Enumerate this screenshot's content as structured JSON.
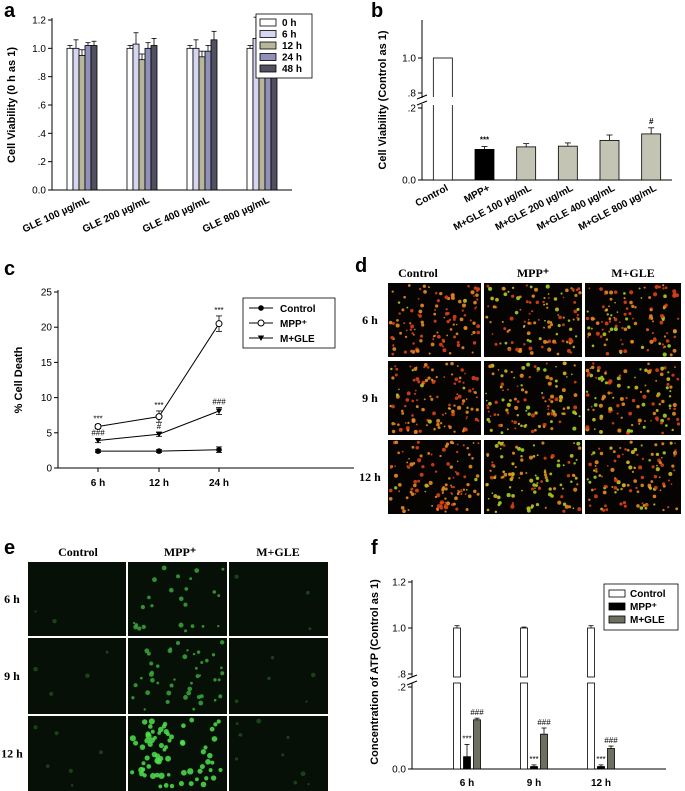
{
  "panel_letters": [
    "a",
    "b",
    "c",
    "d",
    "e",
    "f"
  ],
  "chart_data": [
    {
      "id": "a",
      "type": "bar",
      "ylabel": "Cell Viability (0 h as 1)",
      "ylim": [
        0,
        1.2
      ],
      "yticks": [
        "0.0",
        ".2",
        ".4",
        ".6",
        ".8",
        "1.0",
        "1.2"
      ],
      "categories": [
        "GLE 100 µg/mL",
        "GLE 200 µg/mL",
        "GLE 400 µg/mL",
        "GLE 800 µg/mL"
      ],
      "legend_position": "top-right",
      "series": [
        {
          "name": "0 h",
          "color": "#ffffff",
          "values": [
            1.0,
            1.0,
            1.0,
            1.0
          ],
          "errors": [
            0.02,
            0.02,
            0.02,
            0.02
          ]
        },
        {
          "name": "6 h",
          "color": "#d6d6f2",
          "values": [
            1.0,
            1.03,
            1.0,
            1.07
          ],
          "errors": [
            0.06,
            0.08,
            0.06,
            0.15
          ]
        },
        {
          "name": "12 h",
          "color": "#b8b69a",
          "values": [
            0.95,
            0.92,
            0.94,
            0.9
          ],
          "errors": [
            0.04,
            0.04,
            0.04,
            0.04
          ]
        },
        {
          "name": "24 h",
          "color": "#9090b8",
          "values": [
            1.02,
            1.0,
            0.98,
            1.03
          ],
          "errors": [
            0.02,
            0.04,
            0.04,
            0.03
          ]
        },
        {
          "name": "48 h",
          "color": "#505060",
          "values": [
            1.02,
            1.02,
            1.06,
            1.12
          ],
          "errors": [
            0.03,
            0.05,
            0.06,
            0.06
          ]
        }
      ]
    },
    {
      "id": "b",
      "type": "bar",
      "ylabel": "Cell Viability (Control as 1)",
      "yticks_upper": [
        ".8",
        "1.0"
      ],
      "yticks_lower": [
        "0.0",
        ".2"
      ],
      "categories": [
        "Control",
        "MPP+",
        "M+GLE 100 µg/mL",
        "M+GLE 200 µg/mL",
        "M+GLE 400 µg/mL",
        "M+GLE 800 µg/mL"
      ],
      "values": [
        1.0,
        0.085,
        0.092,
        0.094,
        0.11,
        0.128
      ],
      "errors": [
        0,
        0.008,
        0.009,
        0.009,
        0.015,
        0.017
      ],
      "colors": [
        "#ffffff",
        "#000000",
        "#c4c4b4",
        "#c4c4b4",
        "#c4c4b4",
        "#c4c4b4"
      ],
      "annotations": [
        "",
        "***",
        "",
        "",
        "",
        "#"
      ]
    },
    {
      "id": "c",
      "type": "line",
      "ylabel": "% Cell Death",
      "ylim": [
        0,
        25
      ],
      "yticks": [
        "0",
        "5",
        "10",
        "15",
        "20",
        "25"
      ],
      "categories": [
        "6 h",
        "12 h",
        "24 h"
      ],
      "legend_position": "top-right",
      "series": [
        {
          "name": "Control",
          "marker": "filled-circle",
          "values": [
            2.4,
            2.4,
            2.6
          ],
          "errors": [
            0.2,
            0.2,
            0.4
          ],
          "labels": [
            "",
            "",
            ""
          ]
        },
        {
          "name": "MPP⁺",
          "marker": "open-circle",
          "values": [
            5.9,
            7.3,
            20.5
          ],
          "errors": [
            0.3,
            0.8,
            1.1
          ],
          "labels": [
            "***",
            "***",
            "***"
          ]
        },
        {
          "name": "M+GLE",
          "marker": "filled-triangle",
          "values": [
            3.9,
            4.8,
            8.1
          ],
          "errors": [
            0.3,
            0.3,
            0.5
          ],
          "labels": [
            "###",
            "#",
            "###"
          ]
        }
      ]
    },
    {
      "id": "f",
      "type": "bar",
      "ylabel": "Concentration of ATP (Control as 1)",
      "yticks_upper": [
        ".8",
        "1.0",
        "1.2"
      ],
      "yticks_lower": [
        "0.0",
        ".2"
      ],
      "categories": [
        "6 h",
        "9 h",
        "12 h"
      ],
      "legend_position": "top-right",
      "series": [
        {
          "name": "Control",
          "color": "#ffffff",
          "values": [
            1.0,
            1.0,
            1.0
          ],
          "errors": [
            0.01,
            0.004,
            0.01
          ],
          "labels": [
            "",
            "",
            ""
          ]
        },
        {
          "name": "MPP⁺",
          "color": "#000000",
          "values": [
            0.03,
            0.006,
            0.006
          ],
          "errors": [
            0.03,
            0.004,
            0.004
          ],
          "labels": [
            "***",
            "***",
            "***"
          ]
        },
        {
          "name": "M+GLE",
          "color": "#6c7060",
          "values": [
            0.12,
            0.085,
            0.05
          ],
          "errors": [
            0.004,
            0.015,
            0.006
          ],
          "labels": [
            "###",
            "###",
            "###"
          ]
        }
      ]
    }
  ],
  "micrographs": {
    "d": {
      "columns": [
        "Control",
        "MPP⁺",
        "M+GLE"
      ],
      "rows": [
        "6 h",
        "9 h",
        "12 h"
      ]
    },
    "e": {
      "columns": [
        "Control",
        "MPP⁺",
        "M+GLE"
      ],
      "rows": [
        "6 h",
        "9 h",
        "12 h"
      ]
    }
  }
}
